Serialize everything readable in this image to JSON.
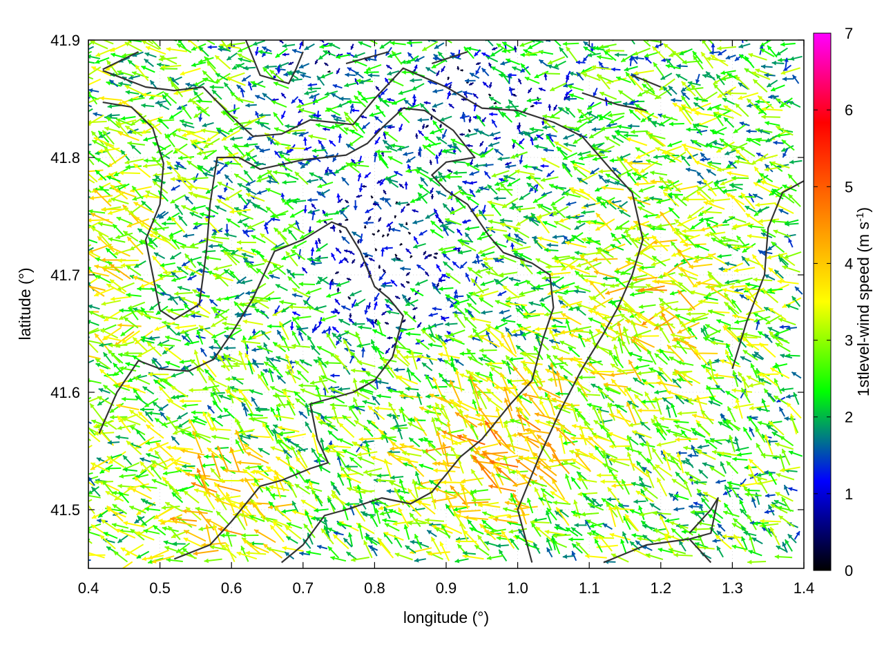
{
  "chart_data": {
    "type": "scatter",
    "subtype": "wind vector field (arrows colored by speed) with topographic contour lines",
    "xlabel": "longitude (°)",
    "ylabel": "latitude (°)",
    "xlim": [
      0.4,
      1.4
    ],
    "ylim": [
      41.45,
      41.9
    ],
    "x_ticks": [
      "0.4",
      "0.5",
      "0.6",
      "0.7",
      "0.8",
      "0.9",
      "1.0",
      "1.1",
      "1.2",
      "1.3",
      "1.4"
    ],
    "x_tick_values": [
      0.4,
      0.5,
      0.6,
      0.7,
      0.8,
      0.9,
      1.0,
      1.1,
      1.2,
      1.3,
      1.4
    ],
    "y_ticks": [
      "41.5",
      "41.6",
      "41.7",
      "41.8",
      "41.9"
    ],
    "y_tick_values": [
      41.5,
      41.6,
      41.7,
      41.8,
      41.9
    ],
    "grid": true,
    "colorbar": {
      "label_main": "1stlevel-wind speed (m s",
      "label_sup": "-1",
      "label_close": ")",
      "range": [
        0,
        7
      ],
      "ticks": [
        "0",
        "1",
        "2",
        "3",
        "4",
        "5",
        "6",
        "7"
      ],
      "tick_values": [
        0,
        1,
        2,
        3,
        4,
        5,
        6,
        7
      ],
      "colors": [
        "#000000",
        "#0000ff",
        "#00ff00",
        "#ffff00",
        "#ff8000",
        "#ff0000",
        "#ff00ff"
      ]
    },
    "contours": [
      [
        [
          0.42,
          41.874
        ],
        [
          0.48,
          41.86
        ],
        [
          0.52,
          41.857
        ],
        [
          0.56,
          41.86
        ],
        [
          0.6,
          41.835
        ],
        [
          0.63,
          41.818
        ],
        [
          0.67,
          41.82
        ],
        [
          0.71,
          41.832
        ],
        [
          0.77,
          41.828
        ],
        [
          0.8,
          41.85
        ],
        [
          0.84,
          41.876
        ],
        [
          0.9,
          41.86
        ],
        [
          0.95,
          41.842
        ],
        [
          1.0,
          41.84
        ],
        [
          1.05,
          41.83
        ],
        [
          1.09,
          41.818
        ],
        [
          1.13,
          41.79
        ],
        [
          1.16,
          41.77
        ],
        [
          1.175,
          41.73
        ],
        [
          1.16,
          41.7
        ],
        [
          1.14,
          41.672
        ],
        [
          1.12,
          41.65
        ],
        [
          1.09,
          41.62
        ],
        [
          1.06,
          41.585
        ],
        [
          1.03,
          41.545
        ],
        [
          1.0,
          41.5
        ],
        [
          1.02,
          41.455
        ]
      ],
      [
        [
          0.42,
          41.847
        ],
        [
          0.46,
          41.843
        ],
        [
          0.49,
          41.825
        ],
        [
          0.505,
          41.795
        ],
        [
          0.5,
          41.76
        ],
        [
          0.48,
          41.73
        ],
        [
          0.49,
          41.7
        ],
        [
          0.5,
          41.67
        ],
        [
          0.52,
          41.662
        ],
        [
          0.555,
          41.675
        ],
        [
          0.565,
          41.72
        ],
        [
          0.57,
          41.76
        ],
        [
          0.58,
          41.8
        ],
        [
          0.61,
          41.8
        ],
        [
          0.64,
          41.79
        ],
        [
          0.7,
          41.798
        ],
        [
          0.76,
          41.802
        ],
        [
          0.79,
          41.812
        ],
        [
          0.81,
          41.825
        ],
        [
          0.84,
          41.842
        ],
        [
          0.87,
          41.84
        ],
        [
          0.91,
          41.823
        ],
        [
          0.94,
          41.8
        ],
        [
          0.9,
          41.796
        ],
        [
          0.88,
          41.785
        ],
        [
          0.9,
          41.772
        ],
        [
          0.93,
          41.76
        ],
        [
          0.96,
          41.733
        ],
        [
          0.98,
          41.719
        ],
        [
          1.02,
          41.71
        ],
        [
          1.045,
          41.7
        ],
        [
          1.05,
          41.672
        ],
        [
          1.035,
          41.645
        ],
        [
          1.02,
          41.61
        ],
        [
          0.99,
          41.59
        ],
        [
          0.95,
          41.56
        ],
        [
          0.92,
          41.545
        ],
        [
          0.88,
          41.515
        ],
        [
          0.85,
          41.505
        ],
        [
          0.81,
          41.51
        ],
        [
          0.76,
          41.5
        ],
        [
          0.73,
          41.495
        ],
        [
          0.7,
          41.47
        ],
        [
          0.67,
          41.455
        ]
      ],
      [
        [
          0.415,
          41.565
        ],
        [
          0.44,
          41.6
        ],
        [
          0.47,
          41.627
        ],
        [
          0.5,
          41.62
        ],
        [
          0.54,
          41.618
        ],
        [
          0.575,
          41.628
        ],
        [
          0.6,
          41.65
        ],
        [
          0.63,
          41.68
        ],
        [
          0.66,
          41.72
        ],
        [
          0.7,
          41.73
        ],
        [
          0.74,
          41.745
        ],
        [
          0.76,
          41.74
        ],
        [
          0.78,
          41.72
        ],
        [
          0.8,
          41.69
        ],
        [
          0.82,
          41.68
        ],
        [
          0.84,
          41.665
        ],
        [
          0.825,
          41.63
        ],
        [
          0.8,
          41.61
        ],
        [
          0.77,
          41.6
        ],
        [
          0.74,
          41.595
        ],
        [
          0.71,
          41.59
        ],
        [
          0.72,
          41.56
        ],
        [
          0.735,
          41.54
        ],
        [
          0.71,
          41.535
        ],
        [
          0.67,
          41.525
        ],
        [
          0.64,
          41.52
        ],
        [
          0.62,
          41.505
        ],
        [
          0.6,
          41.49
        ],
        [
          0.57,
          41.47
        ],
        [
          0.52,
          41.458
        ]
      ],
      [
        [
          0.42,
          41.875
        ],
        [
          0.47,
          41.89
        ]
      ],
      [
        [
          0.62,
          41.9
        ],
        [
          0.64,
          41.87
        ],
        [
          0.68,
          41.863
        ],
        [
          0.69,
          41.875
        ],
        [
          0.7,
          41.89
        ]
      ],
      [
        [
          0.76,
          41.88
        ],
        [
          0.82,
          41.89
        ]
      ],
      [
        [
          0.88,
          41.88
        ],
        [
          0.93,
          41.89
        ]
      ],
      [
        [
          1.09,
          41.855
        ],
        [
          1.14,
          41.845
        ],
        [
          1.18,
          41.84
        ]
      ],
      [
        [
          1.16,
          41.87
        ],
        [
          1.2,
          41.86
        ]
      ],
      [
        [
          1.24,
          41.48
        ],
        [
          1.27,
          41.5
        ],
        [
          1.28,
          41.51
        ],
        [
          1.27,
          41.48
        ],
        [
          1.24,
          41.475
        ]
      ],
      [
        [
          1.12,
          41.455
        ],
        [
          1.18,
          41.47
        ],
        [
          1.24,
          41.475
        ],
        [
          1.27,
          41.455
        ]
      ],
      [
        [
          1.3,
          41.62
        ],
        [
          1.32,
          41.66
        ],
        [
          1.345,
          41.7
        ],
        [
          1.35,
          41.74
        ],
        [
          1.37,
          41.77
        ],
        [
          1.4,
          41.78
        ]
      ]
    ]
  }
}
